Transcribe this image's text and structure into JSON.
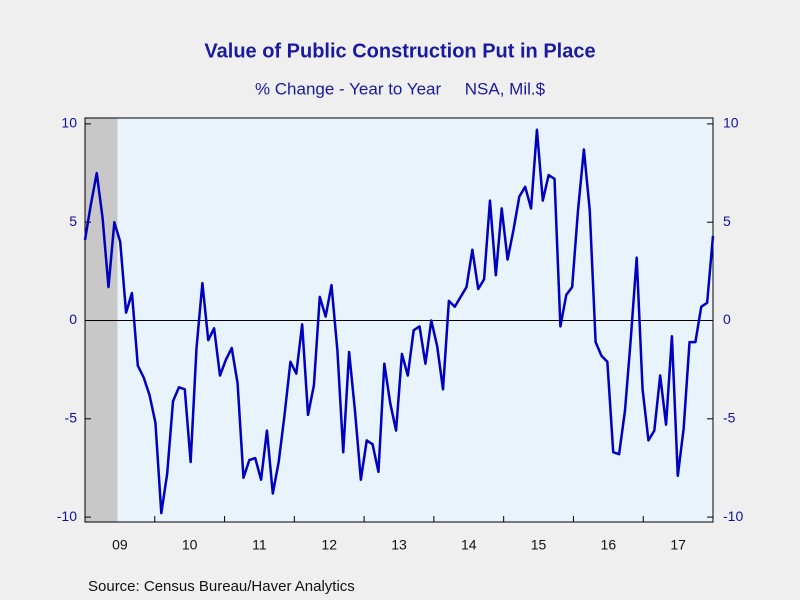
{
  "chart_data": {
    "type": "line",
    "title": "Value of Public Construction Put in Place",
    "subtitle": "% Change - Year to Year     NSA, Mil.$",
    "source": "Source:  Census Bureau/Haver Analytics",
    "xticks": [
      "09",
      "10",
      "11",
      "12",
      "13",
      "14",
      "15",
      "16",
      "17"
    ],
    "series": [
      {
        "color": "#0000c0",
        "values": [
          4.1,
          5.9,
          7.5,
          5.2,
          1.7,
          5.0,
          4.0,
          0.4,
          1.4,
          -2.3,
          -2.9,
          -3.8,
          -5.2,
          -9.8,
          -7.8,
          -4.1,
          -3.4,
          -3.5,
          -7.2,
          -1.4,
          1.9,
          -1.0,
          -0.4,
          -2.8,
          -2.0,
          -1.4,
          -3.2,
          -8.0,
          -7.1,
          -7.0,
          -8.1,
          -5.6,
          -8.8,
          -7.2,
          -4.8,
          -2.1,
          -2.7,
          -0.2,
          -4.8,
          -3.3,
          1.2,
          0.2,
          1.8,
          -1.5,
          -6.7,
          -1.6,
          -4.6,
          -8.1,
          -6.1,
          -6.3,
          -7.7,
          -2.2,
          -4.2,
          -5.6,
          -1.7,
          -2.8,
          -0.5,
          -0.3,
          -2.2,
          0.0,
          -1.3,
          -3.5,
          1.0,
          0.7,
          1.2,
          1.7,
          3.6,
          1.6,
          2.1,
          6.1,
          2.3,
          5.7,
          3.1,
          4.6,
          6.3,
          6.8,
          5.7,
          9.7,
          6.1,
          7.4,
          7.2,
          -0.3,
          1.3,
          1.7,
          5.6,
          8.7,
          5.6,
          -1.1,
          -1.8,
          -2.1,
          -6.7,
          -6.8,
          -4.6,
          -0.9,
          3.2,
          -3.5,
          -6.1,
          -5.6,
          -2.8,
          -5.3,
          -0.8,
          -7.9,
          -5.5,
          -1.1,
          -1.1,
          0.7,
          0.9,
          4.3
        ]
      }
    ],
    "ylim": [
      -10.25,
      10.3
    ],
    "yticks": [
      -10,
      -5,
      0,
      5,
      10
    ],
    "y2lim": [
      -10.25,
      10.3
    ],
    "y2ticks": [
      -10,
      -5,
      0,
      5,
      10
    ]
  }
}
